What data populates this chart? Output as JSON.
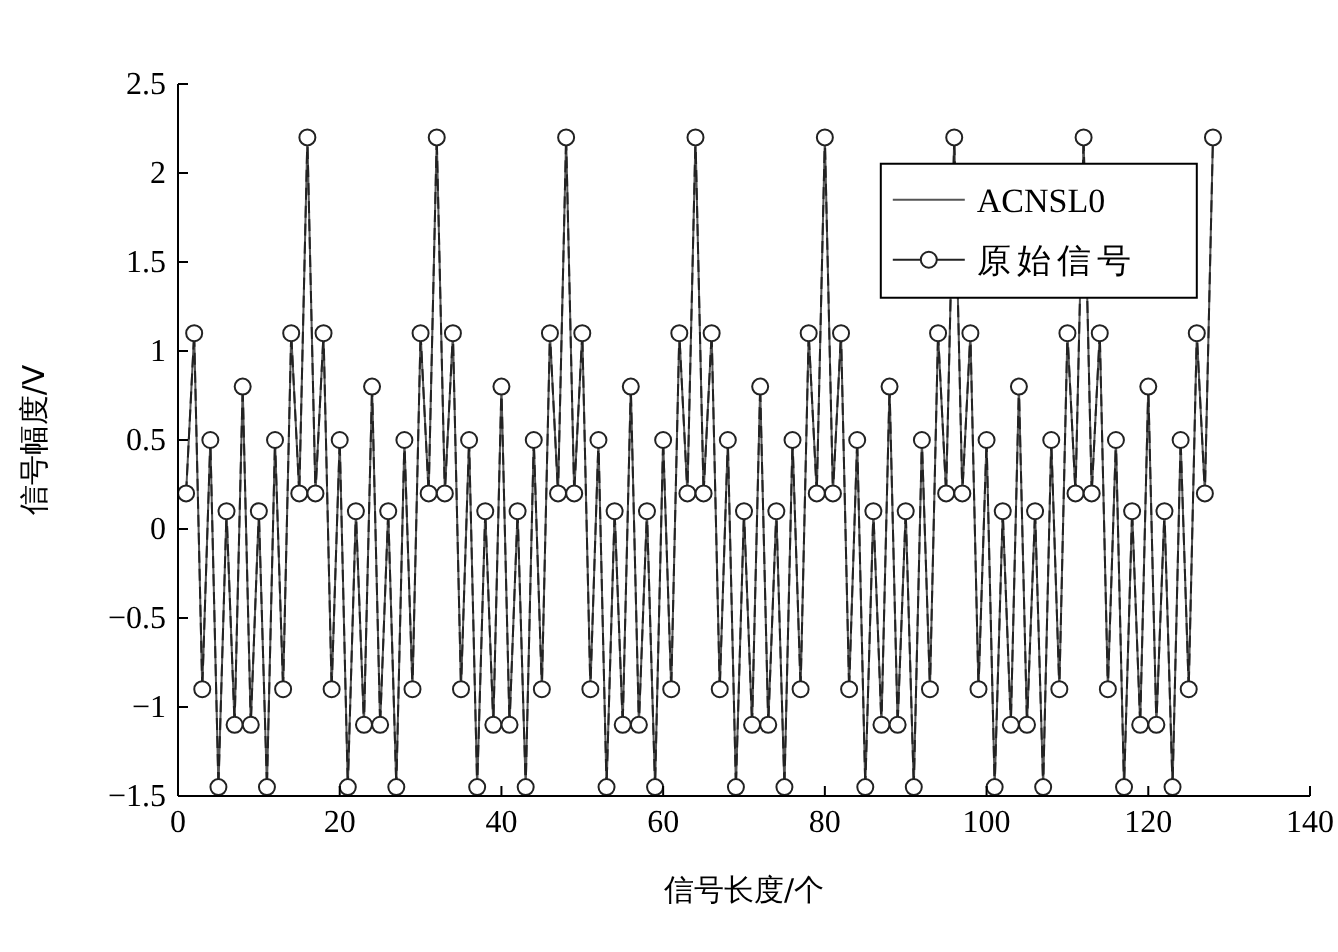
{
  "chart_data": {
    "type": "line",
    "xlabel": "信号长度/个",
    "ylabel": "信号幅度/V",
    "x": [
      1,
      2,
      3,
      4,
      5,
      6,
      7,
      8,
      9,
      10,
      11,
      12,
      13,
      14,
      15,
      16,
      17,
      18,
      19,
      20,
      21,
      22,
      23,
      24,
      25,
      26,
      27,
      28,
      29,
      30,
      31,
      32,
      33,
      34,
      35,
      36,
      37,
      38,
      39,
      40,
      41,
      42,
      43,
      44,
      45,
      46,
      47,
      48,
      49,
      50,
      51,
      52,
      53,
      54,
      55,
      56,
      57,
      58,
      59,
      60,
      61,
      62,
      63,
      64,
      65,
      66,
      67,
      68,
      69,
      70,
      71,
      72,
      73,
      74,
      75,
      76,
      77,
      78,
      79,
      80,
      81,
      82,
      83,
      84,
      85,
      86,
      87,
      88,
      89,
      90,
      91,
      92,
      93,
      94,
      95,
      96,
      97,
      98,
      99,
      100,
      101,
      102,
      103,
      104,
      105,
      106,
      107,
      108,
      109,
      110,
      111,
      112,
      113,
      114,
      115,
      116,
      117,
      118,
      119,
      120,
      121,
      122,
      123,
      124,
      125,
      126,
      127,
      128
    ],
    "series": [
      {
        "name": "ACNSL0",
        "color": "#555555",
        "marker": "none",
        "values": [
          0.2,
          1.1,
          -0.9,
          0.5,
          -1.45,
          0.1,
          -1.1,
          0.8,
          -1.1,
          0.1,
          -1.45,
          0.5,
          -0.9,
          1.1,
          0.2,
          2.2,
          0.2,
          1.1,
          -0.9,
          0.5,
          -1.45,
          0.1,
          -1.1,
          0.8,
          -1.1,
          0.1,
          -1.45,
          0.5,
          -0.9,
          1.1,
          0.2,
          2.2,
          0.2,
          1.1,
          -0.9,
          0.5,
          -1.45,
          0.1,
          -1.1,
          0.8,
          -1.1,
          0.1,
          -1.45,
          0.5,
          -0.9,
          1.1,
          0.2,
          2.2,
          0.2,
          1.1,
          -0.9,
          0.5,
          -1.45,
          0.1,
          -1.1,
          0.8,
          -1.1,
          0.1,
          -1.45,
          0.5,
          -0.9,
          1.1,
          0.2,
          2.2,
          0.2,
          1.1,
          -0.9,
          0.5,
          -1.45,
          0.1,
          -1.1,
          0.8,
          -1.1,
          0.1,
          -1.45,
          0.5,
          -0.9,
          1.1,
          0.2,
          2.2,
          0.2,
          1.1,
          -0.9,
          0.5,
          -1.45,
          0.1,
          -1.1,
          0.8,
          -1.1,
          0.1,
          -1.45,
          0.5,
          -0.9,
          1.1,
          0.2,
          2.2,
          0.2,
          1.1,
          -0.9,
          0.5,
          -1.45,
          0.1,
          -1.1,
          0.8,
          -1.1,
          0.1,
          -1.45,
          0.5,
          -0.9,
          1.1,
          0.2,
          2.2,
          0.2,
          1.1,
          -0.9,
          0.5,
          -1.45,
          0.1,
          -1.1,
          0.8,
          -1.1,
          0.1,
          -1.45,
          0.5,
          -0.9,
          1.1,
          0.2,
          2.2
        ]
      },
      {
        "name": "原始信号",
        "color": "#222222",
        "marker": "circle",
        "line_style": "dashed",
        "values": [
          0.2,
          1.1,
          -0.9,
          0.5,
          -1.45,
          0.1,
          -1.1,
          0.8,
          -1.1,
          0.1,
          -1.45,
          0.5,
          -0.9,
          1.1,
          0.2,
          2.2,
          0.2,
          1.1,
          -0.9,
          0.5,
          -1.45,
          0.1,
          -1.1,
          0.8,
          -1.1,
          0.1,
          -1.45,
          0.5,
          -0.9,
          1.1,
          0.2,
          2.2,
          0.2,
          1.1,
          -0.9,
          0.5,
          -1.45,
          0.1,
          -1.1,
          0.8,
          -1.1,
          0.1,
          -1.45,
          0.5,
          -0.9,
          1.1,
          0.2,
          2.2,
          0.2,
          1.1,
          -0.9,
          0.5,
          -1.45,
          0.1,
          -1.1,
          0.8,
          -1.1,
          0.1,
          -1.45,
          0.5,
          -0.9,
          1.1,
          0.2,
          2.2,
          0.2,
          1.1,
          -0.9,
          0.5,
          -1.45,
          0.1,
          -1.1,
          0.8,
          -1.1,
          0.1,
          -1.45,
          0.5,
          -0.9,
          1.1,
          0.2,
          2.2,
          0.2,
          1.1,
          -0.9,
          0.5,
          -1.45,
          0.1,
          -1.1,
          0.8,
          -1.1,
          0.1,
          -1.45,
          0.5,
          -0.9,
          1.1,
          0.2,
          2.2,
          0.2,
          1.1,
          -0.9,
          0.5,
          -1.45,
          0.1,
          -1.1,
          0.8,
          -1.1,
          0.1,
          -1.45,
          0.5,
          -0.9,
          1.1,
          0.2,
          2.2,
          0.2,
          1.1,
          -0.9,
          0.5,
          -1.45,
          0.1,
          -1.1,
          0.8,
          -1.1,
          0.1,
          -1.45,
          0.5,
          -0.9,
          1.1,
          0.2,
          2.2
        ]
      }
    ],
    "xlim": [
      0,
      140
    ],
    "xticks": [
      0,
      20,
      40,
      60,
      80,
      100,
      120,
      140
    ],
    "ylim": [
      -1.5,
      2.5
    ],
    "yticks": [
      {
        "value": -1.5,
        "label": "−1.5"
      },
      {
        "value": -1,
        "label": "−1"
      },
      {
        "value": -0.5,
        "label": "−0.5"
      },
      0,
      0.5,
      1,
      1.5,
      2,
      2.5
    ],
    "grid": false,
    "legend": "top right"
  }
}
